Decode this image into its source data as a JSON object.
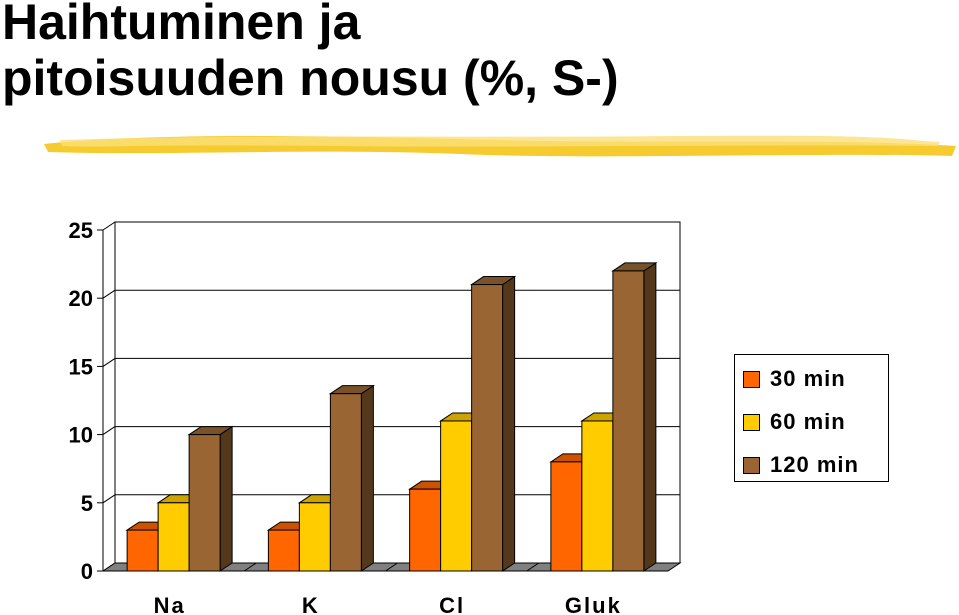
{
  "title": {
    "line1": "Haihtuminen ja",
    "line2": "pitoisuuden nousu (%, S-)"
  },
  "colors": {
    "title_underline": "#f5c518",
    "series": [
      "#ff6600",
      "#ffcc00",
      "#996633"
    ]
  },
  "chart_data": {
    "type": "bar",
    "title": "",
    "xlabel": "",
    "ylabel": "",
    "categories": [
      "Na",
      "K",
      "Cl",
      "Gluk"
    ],
    "series": [
      {
        "name": "30 min",
        "values": [
          3,
          3,
          6,
          8
        ]
      },
      {
        "name": "60 min",
        "values": [
          5,
          5,
          11,
          11
        ]
      },
      {
        "name": "120 min",
        "values": [
          10,
          13,
          21,
          22
        ]
      }
    ],
    "ylim": [
      0,
      25
    ],
    "yticks": [
      "0",
      "5",
      "10",
      "15",
      "20",
      "25"
    ],
    "grid": true,
    "legend": "right",
    "style": "3d-clustered"
  }
}
